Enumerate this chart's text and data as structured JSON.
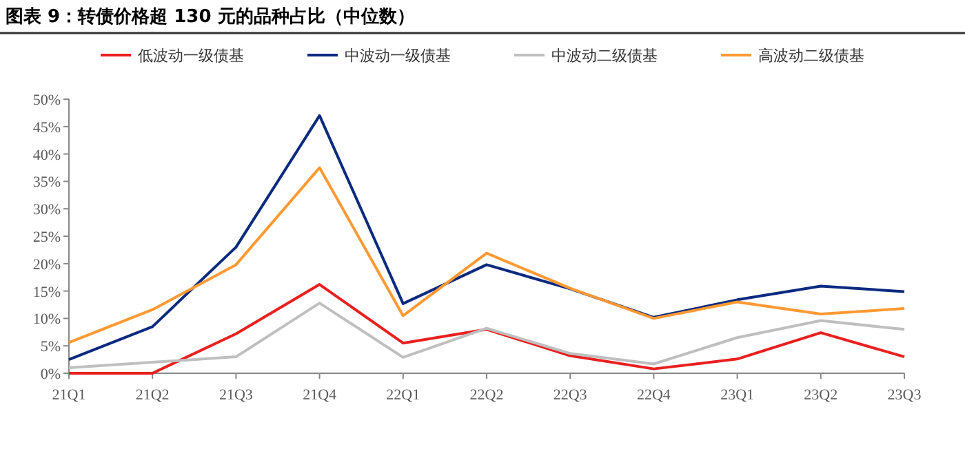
{
  "chart_data": {
    "type": "line",
    "title": "图表 9：转债价格超 130 元的品种占比（中位数）",
    "categories": [
      "21Q1",
      "21Q2",
      "21Q3",
      "21Q4",
      "22Q1",
      "22Q2",
      "22Q3",
      "22Q4",
      "23Q1",
      "23Q2",
      "23Q3"
    ],
    "series": [
      {
        "name": "低波动一级债基",
        "color": "#e8201f",
        "values": [
          0,
          0,
          7.2,
          16.2,
          5.5,
          8.0,
          3.2,
          0.8,
          2.6,
          7.4,
          3.0
        ]
      },
      {
        "name": "中波动一级债基",
        "color": "#0b2a7f",
        "values": [
          2.5,
          8.5,
          23,
          47,
          12.7,
          19.8,
          15.4,
          10.2,
          13.4,
          15.9,
          14.9
        ]
      },
      {
        "name": "中波动二级债基",
        "color": "#bfbfbf",
        "values": [
          1.0,
          2.0,
          3.0,
          12.8,
          2.9,
          8.2,
          3.6,
          1.7,
          6.5,
          9.6,
          8.0
        ]
      },
      {
        "name": "高波动二级债基",
        "color": "#ff9933",
        "values": [
          5.6,
          11.6,
          19.8,
          37.5,
          10.5,
          21.9,
          15.5,
          10.0,
          13.0,
          10.8,
          11.8
        ]
      }
    ],
    "ylim": [
      0,
      50
    ],
    "yticks": [
      {
        "value": 0,
        "label": "0%"
      },
      {
        "value": 5,
        "label": "5%"
      },
      {
        "value": 10,
        "label": "10%"
      },
      {
        "value": 15,
        "label": "15%"
      },
      {
        "value": 20,
        "label": "20%"
      },
      {
        "value": 25,
        "label": "25%"
      },
      {
        "value": 30,
        "label": "30%"
      },
      {
        "value": 35,
        "label": "35%"
      },
      {
        "value": 40,
        "label": "40%"
      },
      {
        "value": 45,
        "label": "45%"
      },
      {
        "value": 50,
        "label": "50%"
      }
    ],
    "legend": "top",
    "grid": false,
    "marker": "none",
    "line_style": "solid"
  }
}
